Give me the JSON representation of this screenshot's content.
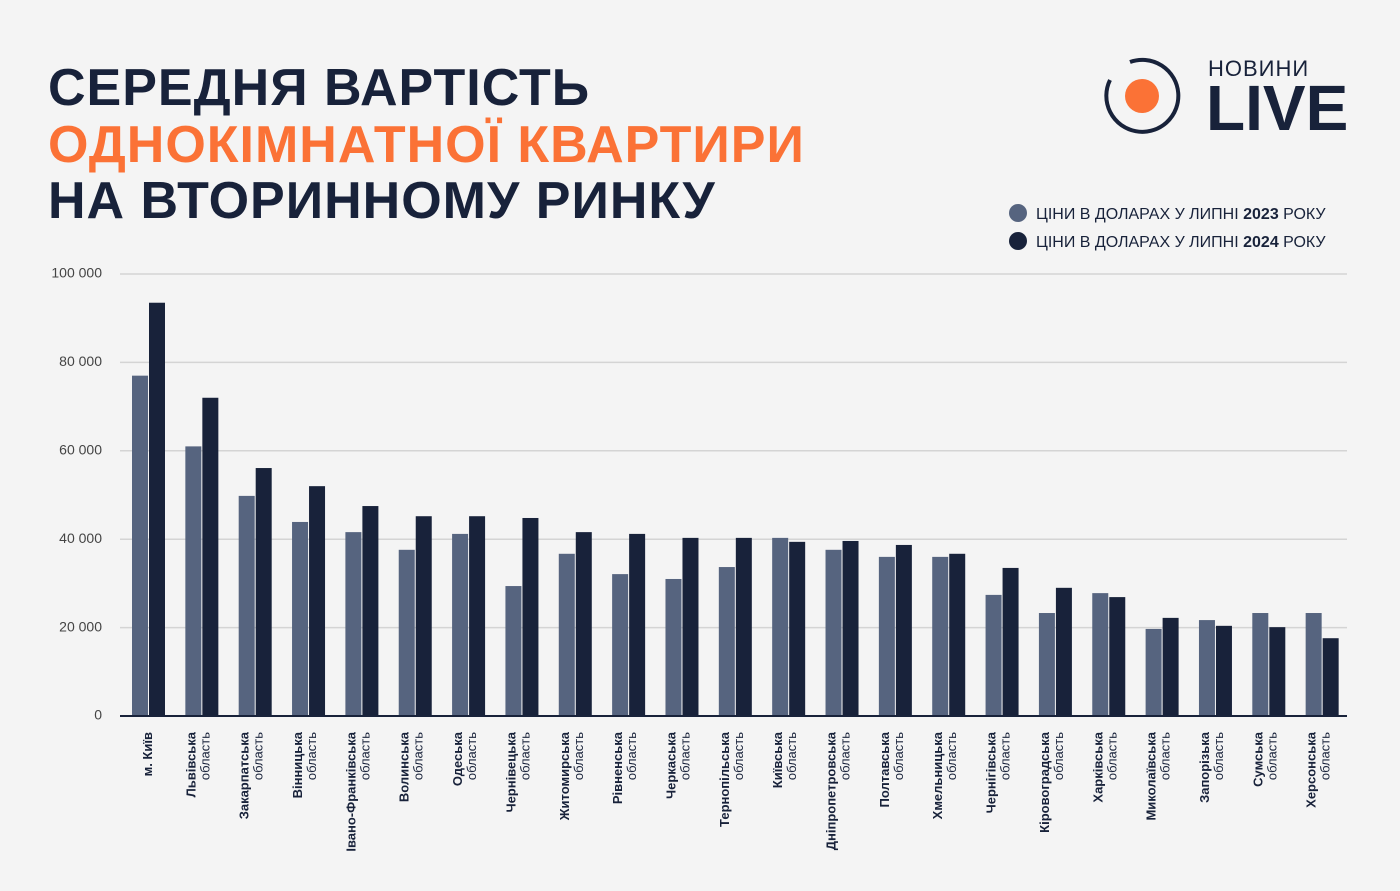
{
  "chart_data": {
    "type": "bar",
    "title": [
      "СЕРЕДНЯ ВАРТІСТЬ",
      "ОДНОКІМНАТНОЇ КВАРТИРИ",
      "НА ВТОРИННОМУ РИНКУ"
    ],
    "logo": {
      "top": "НОВИНИ",
      "bottom": "LIVE"
    },
    "categories": [
      [
        "м. Київ"
      ],
      [
        "Львівська",
        "область"
      ],
      [
        "Закарпатська",
        "область"
      ],
      [
        "Вінницька",
        "область"
      ],
      [
        "Івано-Франківська",
        "область"
      ],
      [
        "Волинська",
        "область"
      ],
      [
        "Одеська",
        "область"
      ],
      [
        "Чернівецька",
        "область"
      ],
      [
        "Житомирська",
        "область"
      ],
      [
        "Рівненська",
        "область"
      ],
      [
        "Черкаська",
        "область"
      ],
      [
        "Тернопільська",
        "область"
      ],
      [
        "Київська",
        "область"
      ],
      [
        "Дніпропетровська",
        "область"
      ],
      [
        "Полтавська",
        "область"
      ],
      [
        "Хмельницька",
        "область"
      ],
      [
        "Чернігівська",
        "область"
      ],
      [
        "Кіровоградська",
        "область"
      ],
      [
        "Харківська",
        "область"
      ],
      [
        "Миколаївська",
        "область"
      ],
      [
        "Запорізька",
        "область"
      ],
      [
        "Сумська",
        "область"
      ],
      [
        "Херсонська",
        "область"
      ]
    ],
    "series": [
      {
        "name": "ЦІНИ В ДОЛАРАХ У ЛИПНІ 2023 РОКУ",
        "color": "#56647f",
        "values": [
          77000,
          61000,
          49800,
          43900,
          41600,
          37600,
          41200,
          29400,
          36700,
          32100,
          31000,
          33700,
          40300,
          37600,
          36000,
          36000,
          27400,
          23300,
          27800,
          19700,
          21700,
          23300,
          23300
        ]
      },
      {
        "name": "ЦІНИ В ДОЛАРАХ У ЛИПНІ 2024 РОКУ",
        "color": "#18223a",
        "values": [
          93500,
          72000,
          56100,
          52000,
          47500,
          45200,
          45200,
          44800,
          41600,
          41200,
          40300,
          40300,
          39400,
          39600,
          38700,
          36700,
          33500,
          29000,
          26900,
          22200,
          20400,
          20100,
          17600
        ]
      }
    ],
    "ylim": [
      0,
      100000
    ],
    "yticks": [
      0,
      {
        "value": 20000,
        "label": "20 000"
      },
      {
        "value": 40000,
        "label": "40 000"
      },
      {
        "value": 60000,
        "label": "60 000"
      },
      {
        "value": 80000,
        "label": "80 000"
      },
      {
        "value": 100000,
        "label": "100 000"
      }
    ],
    "grid": true
  }
}
